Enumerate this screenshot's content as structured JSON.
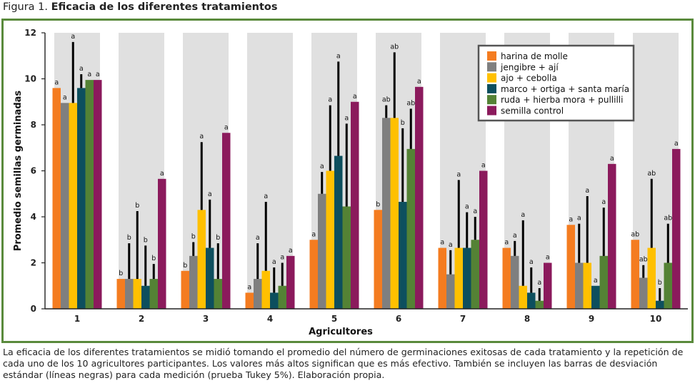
{
  "figure": {
    "label": "Figura 1.",
    "title": "Eficacia de los diferentes tratamientos"
  },
  "caption": "La eficacia de los diferentes tratamientos se midió tomando el promedio del número de germinaciones exitosas de cada tratamiento y la repetición de cada uno de los 10 agricultores participantes. Los valores más altos significan que es más efectivo. También se incluyen las barras de desviación estándar (líneas negras) para cada medición (prueba Tukey 5%). Elaboración propia.",
  "colors": {
    "frame": "#5a8a3c",
    "panel": "#e0e0e0",
    "error_bar": "#000000"
  },
  "chart_data": {
    "type": "bar",
    "xlabel": "Agricultores",
    "ylabel": "Promedio semillas germinadas",
    "ylim": [
      0,
      12
    ],
    "yticks": [
      0,
      2,
      4,
      6,
      8,
      10,
      12
    ],
    "categories": [
      "1",
      "2",
      "3",
      "4",
      "5",
      "6",
      "7",
      "8",
      "9",
      "10"
    ],
    "legend_position": "top-right",
    "grid": false,
    "series": [
      {
        "name": "harina de molle",
        "color": "#f47c20",
        "values": [
          9.6,
          1.3,
          1.65,
          0.7,
          3.0,
          4.3,
          2.65,
          2.65,
          3.65,
          3.0
        ],
        "error": [
          null,
          null,
          null,
          null,
          null,
          null,
          null,
          null,
          null,
          null
        ],
        "sig": [
          "a",
          "b",
          "b",
          "a",
          "a",
          "b",
          "a",
          "a",
          "a",
          "ab"
        ]
      },
      {
        "name": "jengibre + ají",
        "color": "#7f7f7f",
        "values": [
          8.95,
          1.3,
          2.3,
          1.3,
          5.0,
          8.3,
          1.5,
          2.3,
          2.0,
          1.35
        ],
        "error": [
          null,
          2.85,
          2.9,
          2.85,
          5.95,
          8.85,
          2.55,
          2.95,
          3.7,
          1.9
        ],
        "sig": [
          "a",
          "b",
          "b",
          "a",
          "a",
          "ab",
          "a",
          "a",
          "a",
          "ab"
        ]
      },
      {
        "name": "ajo + cebolla",
        "color": "#ffc000",
        "values": [
          8.95,
          1.3,
          4.3,
          1.65,
          6.0,
          8.3,
          2.65,
          1.0,
          2.0,
          2.65
        ],
        "error": [
          11.6,
          4.25,
          7.25,
          4.65,
          8.85,
          11.15,
          5.6,
          3.85,
          4.9,
          5.65
        ],
        "sig": [
          "a",
          "b",
          "a",
          "a",
          "a",
          "ab",
          "a",
          "a",
          "a",
          "ab"
        ]
      },
      {
        "name": "marco + ortiga + santa maría",
        "color": "#0d4f5e",
        "values": [
          9.6,
          1.0,
          2.65,
          0.7,
          6.65,
          4.65,
          2.65,
          0.7,
          1.0,
          0.35
        ],
        "error": [
          10.2,
          2.75,
          4.75,
          1.8,
          10.75,
          7.85,
          4.2,
          1.8,
          null,
          0.9
        ],
        "sig": [
          "a",
          "b",
          "a",
          "a",
          "a",
          "b",
          "a",
          "a",
          "a",
          "b"
        ]
      },
      {
        "name": "ruda + hierba mora + pullilli",
        "color": "#548235",
        "values": [
          9.95,
          1.3,
          1.3,
          1.0,
          4.45,
          6.95,
          3.0,
          0.35,
          2.3,
          2.0
        ],
        "error": [
          null,
          1.95,
          2.85,
          2.0,
          8.05,
          8.7,
          4.0,
          0.9,
          4.4,
          3.7
        ],
        "sig": [
          "a",
          "b",
          "b",
          "a",
          "a",
          "ab",
          "a",
          "a",
          "a",
          "ab"
        ]
      },
      {
        "name": "semilla control",
        "color": "#8b1a5c",
        "values": [
          9.95,
          5.65,
          7.65,
          2.3,
          9.0,
          9.65,
          6.0,
          2.0,
          6.3,
          6.95
        ],
        "error": [
          null,
          null,
          null,
          null,
          null,
          null,
          null,
          null,
          null,
          null
        ],
        "sig": [
          "a",
          "a",
          "a",
          "a",
          "a",
          "a",
          "a",
          "a",
          "a",
          "a"
        ]
      }
    ]
  }
}
